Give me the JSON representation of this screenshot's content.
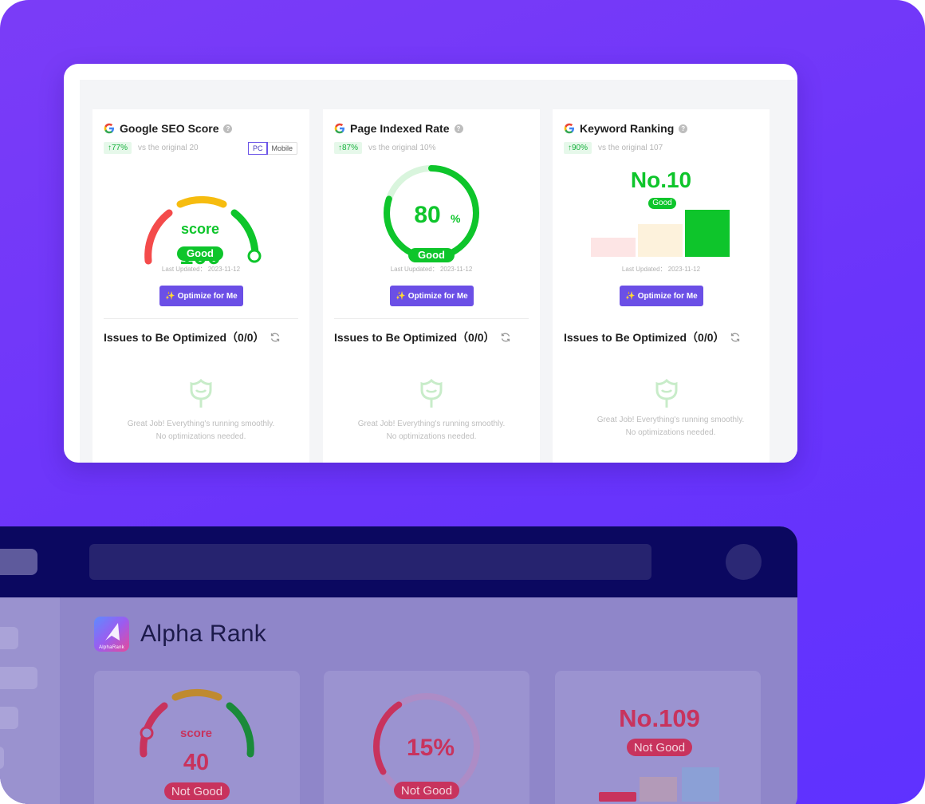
{
  "colors": {
    "bg": "#6f37f9",
    "accent": "#6b4fe6",
    "good": "#0ec52b",
    "bad": "#c8335d"
  },
  "cards": [
    {
      "title": "Google SEO Score",
      "change": "↑77%",
      "compare": "vs the original 20",
      "device": {
        "pc": "PC",
        "mobile": "Mobile"
      },
      "gauge_label": "score",
      "value": "100",
      "value_fraction": 1.0,
      "status": "Good",
      "updated": "Last Updated：  2023-11-12",
      "button": "Optimize for Me",
      "issues": "Issues to Be Optimized（0/0）",
      "empty_line1": "Great Job! Everything's running smoothly.",
      "empty_line2": "No optimizations needed."
    },
    {
      "title": "Page Indexed Rate",
      "change": "↑87%",
      "compare": "vs the original 10%",
      "value": "80",
      "unit": "%",
      "value_fraction": 0.8,
      "status": "Good",
      "updated": "Last Uupdated：  2023-11-12",
      "button": "Optimize for Me",
      "issues": "Issues to Be Optimized（0/0）",
      "empty_line1": "Great Job! Everything's running smoothly.",
      "empty_line2": "No optimizations needed."
    },
    {
      "title": "Keyword Ranking",
      "change": "↑90%",
      "compare": "vs the original 107",
      "value": "No.10",
      "status": "Good",
      "updated": "Last Updated：  2023-11-12",
      "button": "Optimize for Me",
      "issues": "Issues to Be Optimized（0/0）",
      "empty_line1": "Great Job! Everything's running smoothly.",
      "empty_line2": "No optimizations needed."
    }
  ],
  "app": {
    "brand": "Alpha Rank",
    "logo_text": "AlphaRank",
    "cards": [
      {
        "gauge_label": "score",
        "value": "40",
        "status": "Not Good",
        "value_fraction": 0.4
      },
      {
        "value": "15%",
        "status": "Not Good",
        "value_fraction": 0.15
      },
      {
        "value": "No.109",
        "status": "Not Good"
      }
    ]
  },
  "icons": [
    "google-icon",
    "help-icon",
    "sparkle-icon",
    "refresh-icon",
    "empty-flower-icon",
    "avatar-icon",
    "search-bar"
  ]
}
